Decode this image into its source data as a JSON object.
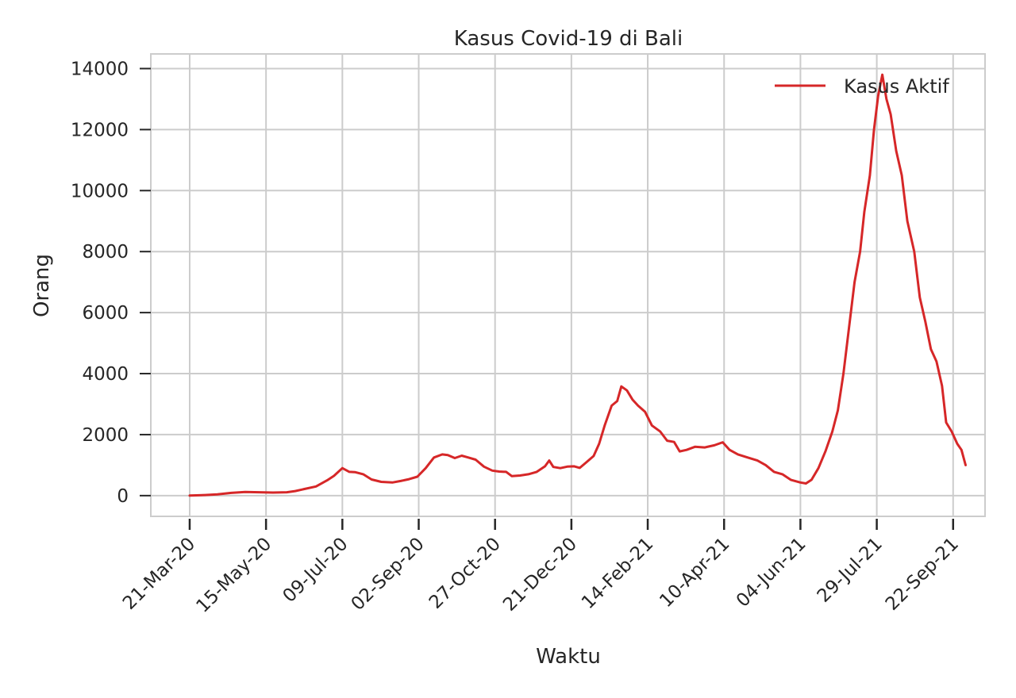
{
  "chart_data": {
    "type": "line",
    "title": "Kasus Covid-19 di Bali",
    "xlabel": "Waktu",
    "ylabel": "Orang",
    "x_tick_labels": [
      "21-Mar-20",
      "15-May-20",
      "09-Jul-20",
      "02-Sep-20",
      "27-Oct-20",
      "21-Dec-20",
      "14-Feb-21",
      "10-Apr-21",
      "04-Jun-21",
      "29-Jul-21",
      "22-Sep-21"
    ],
    "x_tick_dates": [
      "2020-03-21",
      "2020-05-15",
      "2020-07-09",
      "2020-09-02",
      "2020-10-27",
      "2020-12-21",
      "2021-02-14",
      "2021-04-10",
      "2021-06-04",
      "2021-07-29",
      "2021-09-22"
    ],
    "y_ticks": [
      0,
      2000,
      4000,
      6000,
      8000,
      10000,
      12000,
      14000
    ],
    "xlim": [
      "2020-02-22",
      "2021-10-15"
    ],
    "ylim": [
      -680,
      14480
    ],
    "grid": true,
    "legend_position": "top-right",
    "series": [
      {
        "name": "Kasus Aktif",
        "color": "#d62728",
        "points": [
          [
            "2020-03-21",
            0
          ],
          [
            "2020-04-01",
            20
          ],
          [
            "2020-04-10",
            40
          ],
          [
            "2020-04-20",
            90
          ],
          [
            "2020-04-30",
            120
          ],
          [
            "2020-05-10",
            110
          ],
          [
            "2020-05-20",
            100
          ],
          [
            "2020-05-30",
            110
          ],
          [
            "2020-06-05",
            150
          ],
          [
            "2020-06-12",
            220
          ],
          [
            "2020-06-20",
            300
          ],
          [
            "2020-06-28",
            500
          ],
          [
            "2020-07-03",
            650
          ],
          [
            "2020-07-09",
            900
          ],
          [
            "2020-07-14",
            780
          ],
          [
            "2020-07-18",
            770
          ],
          [
            "2020-07-24",
            700
          ],
          [
            "2020-07-30",
            530
          ],
          [
            "2020-08-06",
            450
          ],
          [
            "2020-08-14",
            430
          ],
          [
            "2020-08-20",
            480
          ],
          [
            "2020-08-26",
            540
          ],
          [
            "2020-09-01",
            620
          ],
          [
            "2020-09-07",
            900
          ],
          [
            "2020-09-13",
            1250
          ],
          [
            "2020-09-19",
            1350
          ],
          [
            "2020-09-23",
            1330
          ],
          [
            "2020-09-28",
            1230
          ],
          [
            "2020-10-03",
            1310
          ],
          [
            "2020-10-07",
            1260
          ],
          [
            "2020-10-13",
            1180
          ],
          [
            "2020-10-19",
            950
          ],
          [
            "2020-10-25",
            820
          ],
          [
            "2020-10-30",
            790
          ],
          [
            "2020-11-04",
            780
          ],
          [
            "2020-11-08",
            640
          ],
          [
            "2020-11-14",
            660
          ],
          [
            "2020-11-20",
            700
          ],
          [
            "2020-11-26",
            780
          ],
          [
            "2020-12-02",
            960
          ],
          [
            "2020-12-05",
            1150
          ],
          [
            "2020-12-08",
            940
          ],
          [
            "2020-12-13",
            900
          ],
          [
            "2020-12-18",
            950
          ],
          [
            "2020-12-23",
            960
          ],
          [
            "2020-12-27",
            910
          ],
          [
            "2021-01-01",
            1100
          ],
          [
            "2021-01-06",
            1300
          ],
          [
            "2021-01-10",
            1700
          ],
          [
            "2021-01-14",
            2300
          ],
          [
            "2021-01-19",
            2950
          ],
          [
            "2021-01-23",
            3100
          ],
          [
            "2021-01-26",
            3580
          ],
          [
            "2021-01-30",
            3450
          ],
          [
            "2021-02-03",
            3150
          ],
          [
            "2021-02-07",
            2950
          ],
          [
            "2021-02-12",
            2750
          ],
          [
            "2021-02-17",
            2300
          ],
          [
            "2021-02-23",
            2100
          ],
          [
            "2021-02-28",
            1800
          ],
          [
            "2021-03-05",
            1760
          ],
          [
            "2021-03-09",
            1450
          ],
          [
            "2021-03-14",
            1500
          ],
          [
            "2021-03-20",
            1600
          ],
          [
            "2021-03-27",
            1580
          ],
          [
            "2021-04-03",
            1650
          ],
          [
            "2021-04-09",
            1750
          ],
          [
            "2021-04-14",
            1500
          ],
          [
            "2021-04-20",
            1350
          ],
          [
            "2021-04-27",
            1250
          ],
          [
            "2021-05-04",
            1150
          ],
          [
            "2021-05-10",
            1000
          ],
          [
            "2021-05-16",
            780
          ],
          [
            "2021-05-22",
            700
          ],
          [
            "2021-05-28",
            520
          ],
          [
            "2021-06-04",
            430
          ],
          [
            "2021-06-08",
            400
          ],
          [
            "2021-06-12",
            520
          ],
          [
            "2021-06-17",
            900
          ],
          [
            "2021-06-22",
            1450
          ],
          [
            "2021-06-27",
            2100
          ],
          [
            "2021-07-01",
            2800
          ],
          [
            "2021-07-05",
            4000
          ],
          [
            "2021-07-09",
            5500
          ],
          [
            "2021-07-13",
            7000
          ],
          [
            "2021-07-17",
            8000
          ],
          [
            "2021-07-20",
            9300
          ],
          [
            "2021-07-24",
            10500
          ],
          [
            "2021-07-27",
            12000
          ],
          [
            "2021-07-30",
            13100
          ],
          [
            "2021-08-02",
            13800
          ],
          [
            "2021-08-05",
            13000
          ],
          [
            "2021-08-08",
            12500
          ],
          [
            "2021-08-12",
            11300
          ],
          [
            "2021-08-16",
            10500
          ],
          [
            "2021-08-20",
            9000
          ],
          [
            "2021-08-25",
            8000
          ],
          [
            "2021-08-29",
            6500
          ],
          [
            "2021-09-02",
            5700
          ],
          [
            "2021-09-06",
            4800
          ],
          [
            "2021-09-10",
            4400
          ],
          [
            "2021-09-14",
            3600
          ],
          [
            "2021-09-17",
            2400
          ],
          [
            "2021-09-21",
            2100
          ],
          [
            "2021-09-25",
            1700
          ],
          [
            "2021-09-28",
            1500
          ],
          [
            "2021-10-01",
            1000
          ]
        ]
      }
    ]
  }
}
